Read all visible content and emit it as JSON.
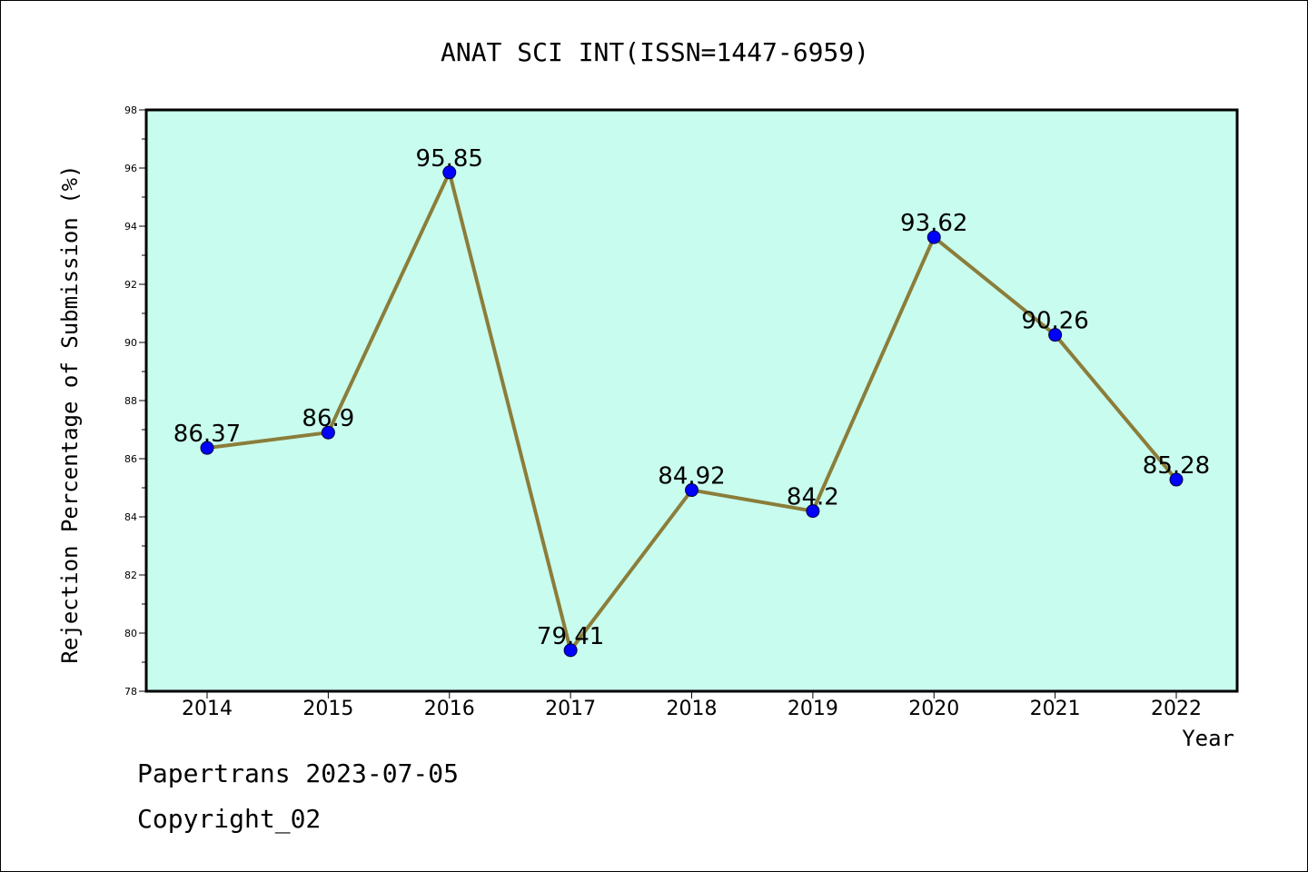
{
  "chart_data": {
    "type": "line",
    "title": "ANAT SCI INT(ISSN=1447-6959)",
    "xlabel": "Year",
    "ylabel": "Rejection Percentage of Submission (%)",
    "categories": [
      "2014",
      "2015",
      "2016",
      "2017",
      "2018",
      "2019",
      "2020",
      "2021",
      "2022"
    ],
    "values": [
      86.37,
      86.9,
      95.85,
      79.41,
      84.92,
      84.2,
      93.62,
      90.26,
      85.28
    ],
    "data_labels": [
      "86.37",
      "86.9",
      "95.85",
      "79.41",
      "84.92",
      "84.2",
      "93.62",
      "90.26",
      "85.28"
    ],
    "ylim": [
      78,
      98
    ],
    "yticks": [
      78,
      80,
      82,
      84,
      86,
      88,
      90,
      92,
      94,
      96,
      98
    ],
    "grid": false,
    "colors": {
      "plot_background": "#c8fcee",
      "line": "#8b7d3a",
      "marker": "#0000ff"
    }
  },
  "footer": {
    "line1": "Papertrans 2023-07-05",
    "line2": "Copyright_02"
  }
}
